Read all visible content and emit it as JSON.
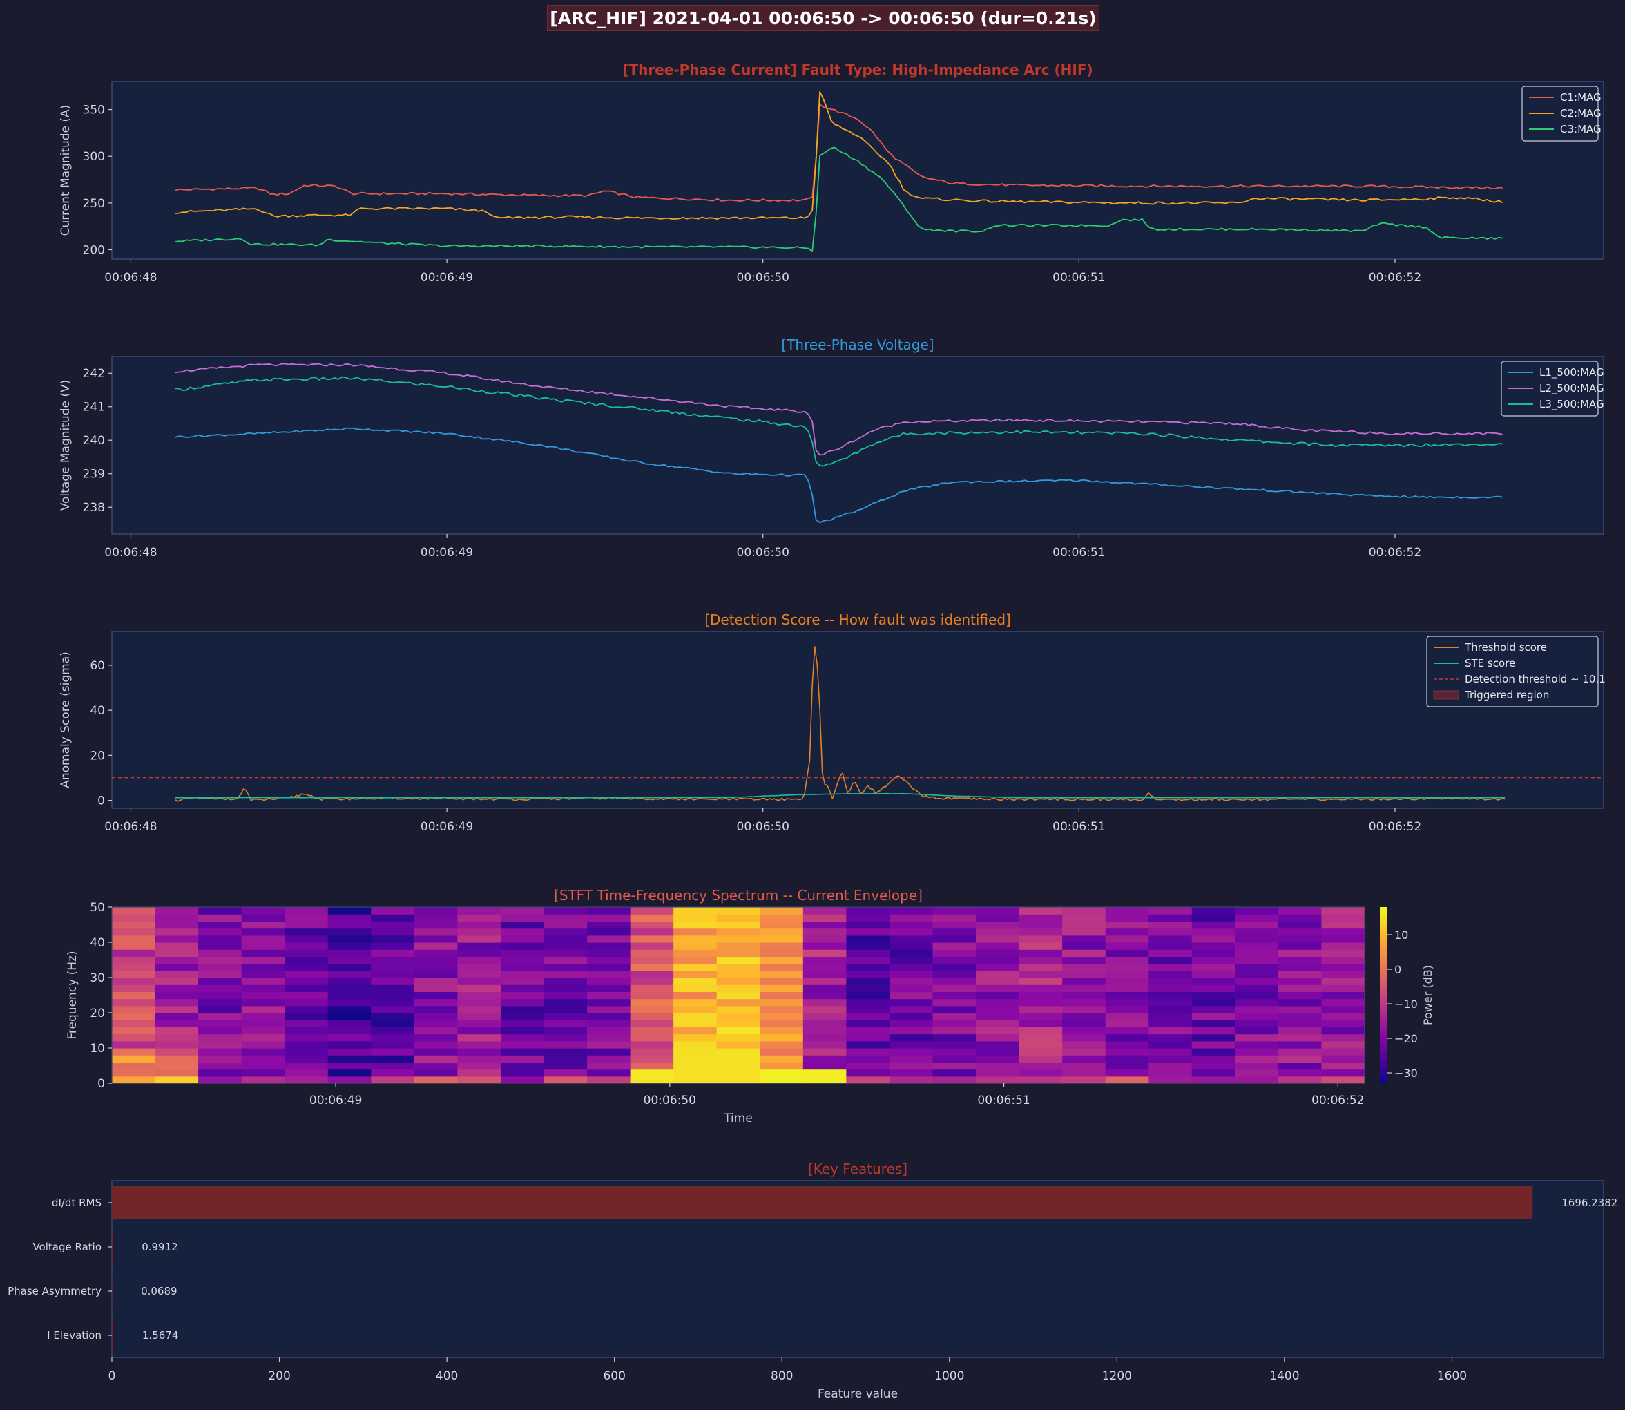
{
  "suptitle": "[ARC_HIF]  2021-04-01 00:06:50 -> 00:06:50  (dur=0.21s)",
  "colors": {
    "figure_bg": "#1a1b2e",
    "axes_bg": "#16213e",
    "spine": "#3d4670",
    "text": "#c9ccd8",
    "tick_text": "#d5d7e2",
    "c1": "#e55a4e",
    "c2": "#f5a623",
    "c3": "#2ecc71",
    "l1": "#3498db",
    "l2": "#c86dd7",
    "l3": "#1abc9c",
    "threshold_score": "#e67e22",
    "ste_score": "#1abc9c",
    "threshold_line": "#c0392b",
    "bar": "#722528"
  },
  "chart_data": [
    {
      "type": "line",
      "title": "[Three-Phase Current]  Fault Type: High-Impedance Arc (HIF)",
      "title_color": "#c0392b",
      "ylabel": "Current Magnitude (A)",
      "xlim_seconds": [
        -0.06,
        4.66
      ],
      "ylim": [
        190,
        380
      ],
      "yticks": [
        200,
        250,
        300,
        350
      ],
      "xticks": [
        "00:06:48",
        "00:06:49",
        "00:06:50",
        "00:06:51",
        "00:06:52"
      ],
      "legend_position": "top-right",
      "series": [
        {
          "name": "C1:MAG",
          "color": "#e55a4e",
          "points": [
            [
              0.14,
              264
            ],
            [
              0.4,
              266
            ],
            [
              0.45,
              259
            ],
            [
              0.5,
              260
            ],
            [
              0.55,
              269
            ],
            [
              0.65,
              268
            ],
            [
              0.7,
              260
            ],
            [
              1.0,
              260
            ],
            [
              1.3,
              258
            ],
            [
              1.45,
              258
            ],
            [
              1.5,
              263
            ],
            [
              1.6,
              256
            ],
            [
              1.9,
              253
            ],
            [
              2.14,
              253
            ],
            [
              2.16,
              258
            ],
            [
              2.18,
              355
            ],
            [
              2.22,
              350
            ],
            [
              2.3,
              340
            ],
            [
              2.35,
              325
            ],
            [
              2.4,
              303
            ],
            [
              2.5,
              278
            ],
            [
              2.6,
              271
            ],
            [
              2.8,
              269
            ],
            [
              3.2,
              268
            ],
            [
              3.6,
              268
            ],
            [
              3.9,
              268
            ],
            [
              4.1,
              267
            ],
            [
              4.35,
              266
            ]
          ]
        },
        {
          "name": "C2:MAG",
          "color": "#f5a623",
          "points": [
            [
              0.14,
              240
            ],
            [
              0.4,
              244
            ],
            [
              0.45,
              236
            ],
            [
              0.6,
              237
            ],
            [
              0.7,
              237
            ],
            [
              0.72,
              244
            ],
            [
              1.0,
              244
            ],
            [
              1.13,
              241
            ],
            [
              1.15,
              234
            ],
            [
              1.4,
              235
            ],
            [
              1.6,
              234
            ],
            [
              1.9,
              234
            ],
            [
              2.14,
              234
            ],
            [
              2.16,
              245
            ],
            [
              2.18,
              370
            ],
            [
              2.22,
              335
            ],
            [
              2.3,
              322
            ],
            [
              2.4,
              292
            ],
            [
              2.45,
              262
            ],
            [
              2.5,
              255
            ],
            [
              2.7,
              252
            ],
            [
              2.9,
              251
            ],
            [
              3.2,
              250
            ],
            [
              3.5,
              250
            ],
            [
              3.56,
              255
            ],
            [
              3.9,
              253
            ],
            [
              4.05,
              254
            ],
            [
              4.2,
              256
            ],
            [
              4.35,
              251
            ]
          ]
        },
        {
          "name": "C3:MAG",
          "color": "#2ecc71",
          "points": [
            [
              0.14,
              209
            ],
            [
              0.35,
              212
            ],
            [
              0.38,
              206
            ],
            [
              0.6,
              205
            ],
            [
              0.62,
              211
            ],
            [
              0.8,
              207
            ],
            [
              1.0,
              204
            ],
            [
              1.3,
              204
            ],
            [
              1.6,
              203
            ],
            [
              1.9,
              203
            ],
            [
              2.14,
              202
            ],
            [
              2.16,
              198
            ],
            [
              2.18,
              300
            ],
            [
              2.22,
              310
            ],
            [
              2.3,
              295
            ],
            [
              2.38,
              275
            ],
            [
              2.45,
              245
            ],
            [
              2.5,
              222
            ],
            [
              2.6,
              220
            ],
            [
              2.7,
              220
            ],
            [
              2.73,
              226
            ],
            [
              3.0,
              226
            ],
            [
              3.1,
              226
            ],
            [
              3.13,
              232
            ],
            [
              3.2,
              232
            ],
            [
              3.23,
              222
            ],
            [
              3.6,
              222
            ],
            [
              3.9,
              220
            ],
            [
              3.95,
              228
            ],
            [
              4.1,
              224
            ],
            [
              4.14,
              213
            ],
            [
              4.35,
              212
            ]
          ]
        }
      ]
    },
    {
      "type": "line",
      "title": "[Three-Phase Voltage]",
      "title_color": "#3498db",
      "ylabel": "Voltage Magnitude (V)",
      "xlim_seconds": [
        -0.06,
        4.66
      ],
      "ylim": [
        237.2,
        242.5
      ],
      "yticks": [
        238,
        239,
        240,
        241,
        242
      ],
      "xticks": [
        "00:06:48",
        "00:06:49",
        "00:06:50",
        "00:06:51",
        "00:06:52"
      ],
      "legend_position": "top-right",
      "series": [
        {
          "name": "L1_500:MAG",
          "color": "#3498db",
          "points": [
            [
              0.14,
              240.1
            ],
            [
              0.4,
              240.2
            ],
            [
              0.7,
              240.35
            ],
            [
              1.0,
              240.2
            ],
            [
              1.3,
              239.85
            ],
            [
              1.6,
              239.35
            ],
            [
              1.9,
              239.0
            ],
            [
              2.14,
              238.95
            ],
            [
              2.16,
              238.2
            ],
            [
              2.17,
              237.5
            ],
            [
              2.3,
              237.9
            ],
            [
              2.45,
              238.5
            ],
            [
              2.6,
              238.75
            ],
            [
              3.0,
              238.8
            ],
            [
              3.3,
              238.65
            ],
            [
              3.6,
              238.5
            ],
            [
              3.9,
              238.35
            ],
            [
              4.1,
              238.3
            ],
            [
              4.35,
              238.3
            ]
          ]
        },
        {
          "name": "L2_500:MAG",
          "color": "#c86dd7",
          "points": [
            [
              0.14,
              242.05
            ],
            [
              0.4,
              242.25
            ],
            [
              0.7,
              242.25
            ],
            [
              1.0,
              242.0
            ],
            [
              1.3,
              241.6
            ],
            [
              1.6,
              241.3
            ],
            [
              1.9,
              241.0
            ],
            [
              2.14,
              240.85
            ],
            [
              2.16,
              240.5
            ],
            [
              2.17,
              239.5
            ],
            [
              2.25,
              239.8
            ],
            [
              2.35,
              240.3
            ],
            [
              2.45,
              240.55
            ],
            [
              2.8,
              240.6
            ],
            [
              3.2,
              240.55
            ],
            [
              3.5,
              240.5
            ],
            [
              3.7,
              240.3
            ],
            [
              4.0,
              240.2
            ],
            [
              4.35,
              240.2
            ]
          ]
        },
        {
          "name": "L3_500:MAG",
          "color": "#1abc9c",
          "points": [
            [
              0.14,
              241.5
            ],
            [
              0.4,
              241.8
            ],
            [
              0.7,
              241.85
            ],
            [
              1.0,
              241.6
            ],
            [
              1.3,
              241.25
            ],
            [
              1.6,
              240.95
            ],
            [
              1.9,
              240.65
            ],
            [
              2.14,
              240.4
            ],
            [
              2.16,
              239.8
            ],
            [
              2.17,
              239.2
            ],
            [
              2.25,
              239.4
            ],
            [
              2.35,
              239.9
            ],
            [
              2.45,
              240.2
            ],
            [
              2.8,
              240.25
            ],
            [
              3.2,
              240.2
            ],
            [
              3.5,
              240.0
            ],
            [
              3.8,
              239.85
            ],
            [
              4.0,
              239.85
            ],
            [
              4.35,
              239.9
            ]
          ]
        }
      ]
    },
    {
      "type": "line",
      "title": "[Detection Score -- How fault was identified]",
      "title_color": "#e67e22",
      "ylabel": "Anomaly Score (sigma)",
      "xlim_seconds": [
        -0.06,
        4.66
      ],
      "ylim": [
        -3.5,
        75
      ],
      "yticks": [
        0,
        20,
        40,
        60
      ],
      "xticks": [
        "00:06:48",
        "00:06:49",
        "00:06:50",
        "00:06:51",
        "00:06:52"
      ],
      "legend_position": "top-right",
      "threshold": 10.1,
      "series": [
        {
          "name": "Threshold score",
          "color": "#e67e22",
          "points": [
            [
              0.14,
              0
            ],
            [
              0.2,
              1
            ],
            [
              0.28,
              0.5
            ],
            [
              0.34,
              1
            ],
            [
              0.36,
              6
            ],
            [
              0.38,
              0
            ],
            [
              0.5,
              1
            ],
            [
              0.55,
              3
            ],
            [
              0.6,
              0.5
            ],
            [
              0.8,
              1
            ],
            [
              1.2,
              0.5
            ],
            [
              1.5,
              1
            ],
            [
              1.8,
              0.5
            ],
            [
              2.1,
              0.5
            ],
            [
              2.13,
              1
            ],
            [
              2.15,
              20
            ],
            [
              2.16,
              71
            ],
            [
              2.17,
              65
            ],
            [
              2.18,
              40
            ],
            [
              2.19,
              5
            ],
            [
              2.2,
              8
            ],
            [
              2.22,
              1
            ],
            [
              2.25,
              13
            ],
            [
              2.27,
              3
            ],
            [
              2.29,
              9
            ],
            [
              2.31,
              2
            ],
            [
              2.33,
              7
            ],
            [
              2.36,
              3
            ],
            [
              2.4,
              8
            ],
            [
              2.43,
              11
            ],
            [
              2.47,
              6
            ],
            [
              2.5,
              2
            ],
            [
              2.55,
              1
            ],
            [
              2.7,
              0.5
            ],
            [
              3.0,
              0.5
            ],
            [
              3.2,
              0.3
            ],
            [
              3.22,
              3
            ],
            [
              3.25,
              0.3
            ],
            [
              3.5,
              0.5
            ],
            [
              3.9,
              0.5
            ],
            [
              4.2,
              1
            ],
            [
              4.35,
              0.5
            ]
          ]
        },
        {
          "name": "STE score",
          "color": "#1abc9c",
          "points": [
            [
              0.14,
              1.2
            ],
            [
              1.5,
              1.2
            ],
            [
              1.9,
              1.3
            ],
            [
              2.1,
              2.5
            ],
            [
              2.3,
              3.0
            ],
            [
              2.45,
              3.0
            ],
            [
              2.6,
              2.0
            ],
            [
              2.8,
              1.2
            ],
            [
              4.35,
              1.2
            ]
          ]
        }
      ],
      "legend_entries": [
        "Threshold score",
        "STE score",
        "Detection threshold ~ 10.1",
        "Triggered region"
      ]
    },
    {
      "type": "heatmap",
      "title": "[STFT Time-Frequency Spectrum -- Current Envelope]",
      "title_color": "#e55a4e",
      "xlabel": "Time",
      "ylabel": "Frequency (Hz)",
      "ylim": [
        0,
        50
      ],
      "yticks": [
        0,
        10,
        20,
        30,
        40,
        50
      ],
      "xticks": [
        "00:06:49",
        "00:06:50",
        "00:06:51",
        "00:06:52"
      ],
      "colorbar_label": "Power (dB)",
      "colorbar_ticks": [
        10,
        0,
        -10,
        -20,
        -30
      ],
      "clim": [
        -33,
        18
      ],
      "time_bins_seconds": [
        0.33,
        4.08
      ],
      "freq_bins": 25,
      "column_profile": [
        -8,
        -15,
        -20,
        -18,
        -22,
        -26,
        -24,
        -19,
        -17,
        -22,
        -21,
        -20,
        -5,
        8,
        12,
        5,
        -15,
        -24,
        -22,
        -21,
        -18,
        -14,
        -17,
        -19,
        -21,
        -22,
        -20,
        -18,
        -17
      ],
      "hot_columns": {
        "12": 0,
        "13": 14,
        "14": 13,
        "15": 8,
        "16": 6
      }
    },
    {
      "type": "bar",
      "orientation": "horizontal",
      "title": "[Key Features]",
      "title_color": "#c0392b",
      "xlabel": "Feature value",
      "xlim": [
        0,
        1781
      ],
      "xticks": [
        0,
        200,
        400,
        600,
        800,
        1000,
        1200,
        1400,
        1600
      ],
      "categories": [
        "dI/dt RMS",
        "Voltage Ratio",
        "Phase Asymmetry",
        "I Elevation"
      ],
      "values": [
        1696.2382,
        0.9912,
        0.0689,
        1.5674
      ],
      "value_labels": [
        "1696.2382",
        "0.9912",
        "0.0689",
        "1.5674"
      ]
    }
  ]
}
